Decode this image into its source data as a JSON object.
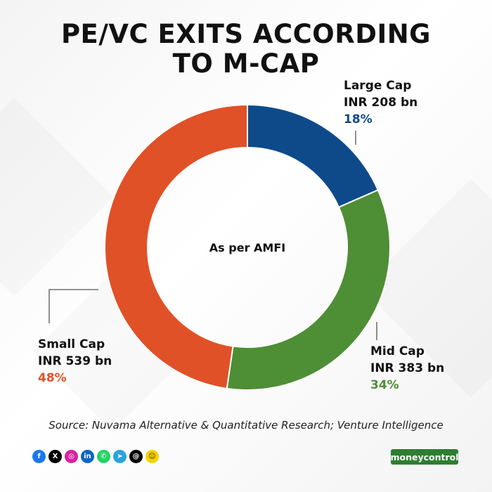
{
  "title": {
    "line1": "PE/VC EXITS ACCORDING",
    "line2": "TO M-CAP"
  },
  "source": "Source: Nuvama Alternative & Quantitative Research; Venture Intelligence",
  "brand": "moneycontrol",
  "social_icons": [
    "facebook-icon",
    "x-icon",
    "instagram-icon",
    "linkedin-icon",
    "whatsapp-icon",
    "telegram-icon",
    "threads-icon",
    "snapchat-icon"
  ],
  "chart_data": {
    "type": "pie",
    "center_label": "As per AMFI",
    "series": [
      {
        "name": "Large Cap",
        "value_label": "INR 208 bn",
        "value": 208,
        "percent": 18,
        "percent_label": "18%",
        "color": "#0e4a8a"
      },
      {
        "name": "Mid Cap",
        "value_label": "INR 383 bn",
        "value": 383,
        "percent": 34,
        "percent_label": "34%",
        "color": "#4e8e35"
      },
      {
        "name": "Small Cap",
        "value_label": "INR 539 bn",
        "value": 539,
        "percent": 48,
        "percent_label": "48%",
        "color": "#e05128"
      }
    ]
  }
}
